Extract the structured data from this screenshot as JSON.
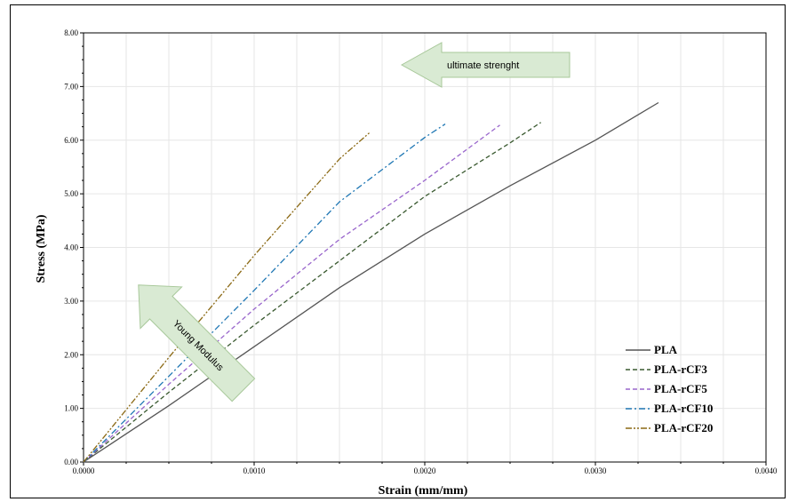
{
  "chart_data": {
    "type": "line",
    "title": "",
    "xlabel": "Strain (mm/mm)",
    "ylabel": "Stress (MPa)",
    "xlim": [
      0,
      0.004
    ],
    "ylim": [
      0,
      8
    ],
    "x_ticks": [
      "0.0000",
      "0.0010",
      "0.0020",
      "0.0030",
      "0.0040"
    ],
    "y_ticks": [
      "0.00",
      "1.00",
      "2.00",
      "3.00",
      "4.00",
      "5.00",
      "6.00",
      "7.00",
      "8.00"
    ],
    "grid": true,
    "legend_position": "bottom-right",
    "series": [
      {
        "name": "PLA",
        "color": "#555555",
        "dash": "solid",
        "x": [
          0,
          0.0005,
          0.001,
          0.0015,
          0.002,
          0.0025,
          0.003,
          0.00337
        ],
        "y": [
          0,
          1.05,
          2.15,
          3.25,
          4.25,
          5.15,
          6.0,
          6.7
        ]
      },
      {
        "name": "PLA-rCF3",
        "color": "#3a5a30",
        "dash": "dash",
        "x": [
          0,
          0.0005,
          0.001,
          0.0015,
          0.002,
          0.0025,
          0.00268
        ],
        "y": [
          0,
          1.3,
          2.55,
          3.75,
          4.95,
          5.95,
          6.33
        ]
      },
      {
        "name": "PLA-rCF5",
        "color": "#9966cc",
        "dash": "dash",
        "x": [
          0,
          0.0005,
          0.001,
          0.0015,
          0.002,
          0.00244
        ],
        "y": [
          0,
          1.45,
          2.85,
          4.15,
          5.25,
          6.28
        ]
      },
      {
        "name": "PLA-rCF10",
        "color": "#1f77b4",
        "dash": "dashdot",
        "x": [
          0,
          0.0005,
          0.001,
          0.0015,
          0.002,
          0.00212
        ],
        "y": [
          0,
          1.6,
          3.2,
          4.85,
          6.05,
          6.3
        ]
      },
      {
        "name": "PLA-rCF20",
        "color": "#8b6914",
        "dash": "dashdotdot",
        "x": [
          0,
          0.0005,
          0.001,
          0.0015,
          0.00168
        ],
        "y": [
          0,
          1.95,
          3.85,
          5.65,
          6.15
        ]
      }
    ],
    "annotations": [
      {
        "text": "ultimate strenght"
      },
      {
        "text": "Young Modulus"
      }
    ]
  },
  "style": {
    "annotation_fill": "#d9ead3",
    "annotation_stroke": "#a8c89a"
  }
}
